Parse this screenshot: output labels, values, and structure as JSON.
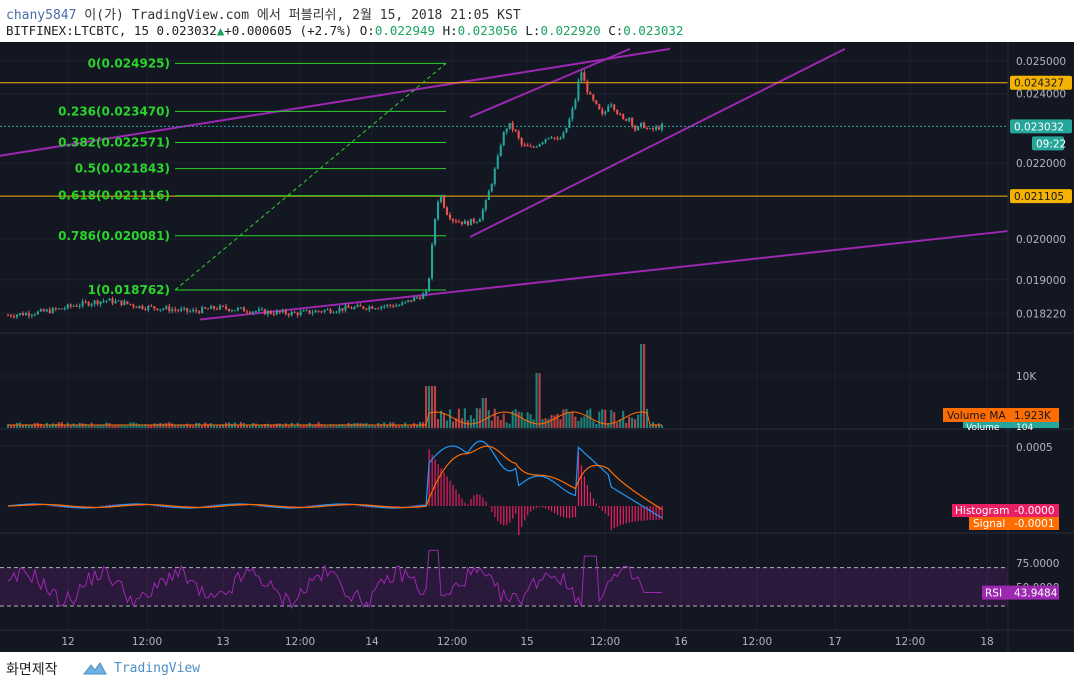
{
  "header": {
    "user": "chany5847",
    "publish_text": "이(가) TradingView.com 에서 퍼블리쉬, 2월 15, 2018 21:05 KST",
    "symbol": "BITFINEX:LTCBTC, 15",
    "last": "0.023032",
    "change": "+0.000605 (+2.7%)",
    "o_label": "O:",
    "o_value": "0.022949",
    "h_label": "H:",
    "h_value": "0.023056",
    "l_label": "L:",
    "l_value": "0.022920",
    "c_label": "C:",
    "c_value": "0.023032",
    "up_arrow_icon": "triangle-up-icon"
  },
  "footer": {
    "made_label": "화면제작",
    "brand": "TradingView",
    "brand_icon": "tradingview-cloud-icon"
  },
  "colors": {
    "background": "#131722",
    "up": "#26a69a",
    "down": "#ef5350",
    "fib": "#2bd42b",
    "trendline": "#9c27b0",
    "horizontal": "#f5b301",
    "macd": "#2196f3",
    "signal": "#ff6d00",
    "histogram": "#e91e63",
    "rsi": "#9c27b0"
  },
  "chart_data": [
    {
      "type": "candlestick",
      "panel": "price",
      "title": "BITFINEX:LTCBTC, 15",
      "x_ticks": [
        "12",
        "12:00",
        "13",
        "12:00",
        "14",
        "12:00",
        "15",
        "12:00",
        "16",
        "12:00",
        "17",
        "12:00",
        "18"
      ],
      "y_ticks": [
        "0.025000",
        "0.024000",
        "0.022000",
        "0.020000",
        "0.019000",
        "0.018220"
      ],
      "ylim": [
        0.0178,
        0.0256
      ],
      "log_scale": true,
      "price_labels": [
        "0.024327",
        "0.023032",
        "09:22",
        "0.021105"
      ],
      "horizontal_lines": [
        0.024327,
        0.021105
      ],
      "last_price": 0.023032,
      "fibonacci": [
        {
          "label": "0(0.024925)",
          "value": 0.024925
        },
        {
          "label": "0.236(0.023470)",
          "value": 0.02347
        },
        {
          "label": "0.382(0.022571)",
          "value": 0.022571
        },
        {
          "label": "0.5(0.021843)",
          "value": 0.021843
        },
        {
          "label": "0.618(0.021116)",
          "value": 0.021116
        },
        {
          "label": "0.786(0.020081)",
          "value": 0.020081
        },
        {
          "label": "1(0.018762)",
          "value": 0.018762
        }
      ],
      "close_path": [
        [
          0,
          0.01818
        ],
        [
          0.05,
          0.01825
        ],
        [
          0.08,
          0.01832
        ],
        [
          0.1,
          0.0184
        ],
        [
          0.13,
          0.01848
        ],
        [
          0.15,
          0.01852
        ],
        [
          0.18,
          0.01845
        ],
        [
          0.2,
          0.01838
        ],
        [
          0.24,
          0.01833
        ],
        [
          0.28,
          0.01826
        ],
        [
          0.32,
          0.01835
        ],
        [
          0.36,
          0.0183
        ],
        [
          0.4,
          0.01824
        ],
        [
          0.44,
          0.01822
        ],
        [
          0.48,
          0.01828
        ],
        [
          0.52,
          0.01834
        ],
        [
          0.56,
          0.01838
        ],
        [
          0.6,
          0.01841
        ],
        [
          0.62,
          0.01855
        ],
        [
          0.64,
          0.01868
        ],
        [
          0.645,
          0.0192
        ],
        [
          0.65,
          0.0201
        ],
        [
          0.655,
          0.0208
        ],
        [
          0.66,
          0.0212
        ],
        [
          0.67,
          0.0207
        ],
        [
          0.68,
          0.0205
        ],
        [
          0.7,
          0.0204
        ],
        [
          0.72,
          0.0205
        ],
        [
          0.73,
          0.0209
        ],
        [
          0.74,
          0.0215
        ],
        [
          0.75,
          0.0222
        ],
        [
          0.755,
          0.0227
        ],
        [
          0.765,
          0.0231
        ],
        [
          0.775,
          0.0229
        ],
        [
          0.785,
          0.0225
        ],
        [
          0.8,
          0.0224
        ],
        [
          0.815,
          0.0226
        ],
        [
          0.83,
          0.0228
        ],
        [
          0.84,
          0.0226
        ],
        [
          0.85,
          0.0228
        ],
        [
          0.86,
          0.0233
        ],
        [
          0.87,
          0.024
        ],
        [
          0.875,
          0.0248
        ],
        [
          0.88,
          0.0244
        ],
        [
          0.89,
          0.0239
        ],
        [
          0.9,
          0.0236
        ],
        [
          0.91,
          0.0233
        ],
        [
          0.92,
          0.0238
        ],
        [
          0.93,
          0.0235
        ],
        [
          0.94,
          0.0232
        ],
        [
          0.95,
          0.0233
        ],
        [
          0.96,
          0.0229
        ],
        [
          0.97,
          0.0231
        ],
        [
          0.98,
          0.0229
        ],
        [
          1.0,
          0.023032
        ]
      ]
    },
    {
      "type": "bar",
      "panel": "volume",
      "y_ticks": [
        "10K"
      ],
      "labels": [
        "Volume MA",
        "1.923K",
        "Volume",
        "104"
      ],
      "volume_ma": 1923,
      "volume": 104
    },
    {
      "type": "line",
      "panel": "macd",
      "y_ticks": [
        "0.0005"
      ],
      "series": [
        {
          "name": "Histogram",
          "last": -0.0
        },
        {
          "name": "Signal",
          "last": -0.0001
        }
      ],
      "labels": [
        "Histogram",
        "-0.0000",
        "Signal",
        "-0.0001"
      ]
    },
    {
      "type": "line",
      "panel": "rsi",
      "y_ticks": [
        "75.0000",
        "50.0000"
      ],
      "band": [
        30,
        70
      ],
      "series": [
        {
          "name": "RSI",
          "last": 43.9484
        }
      ],
      "labels": [
        "RSI",
        "43.9484"
      ]
    }
  ]
}
